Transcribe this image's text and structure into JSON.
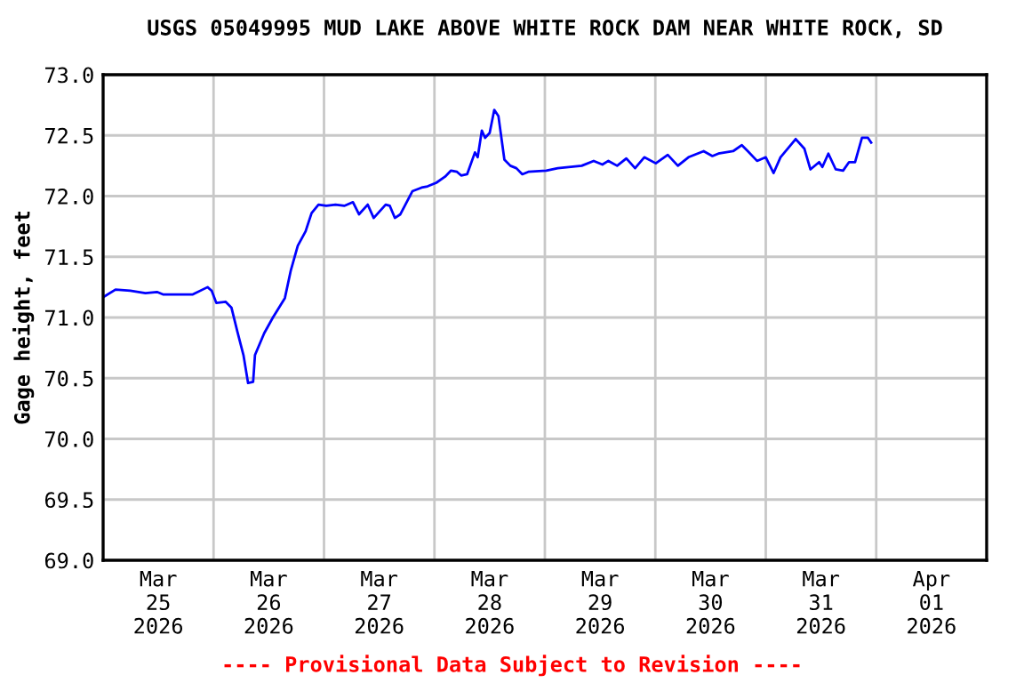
{
  "chart_data": {
    "type": "line",
    "title": "USGS 05049995 MUD LAKE ABOVE WHITE ROCK DAM NEAR WHITE ROCK, SD",
    "ylabel": "Gage height, feet",
    "annotations": [
      "---- Provisional Data Subject to Revision ----"
    ],
    "x": [
      "2026-03-25T00:08",
      "2026-03-25T02:42",
      "2026-03-25T05:54",
      "2026-03-25T09:12",
      "2026-03-25T11:42",
      "2026-03-25T13:00",
      "2026-03-25T19:30",
      "2026-03-25T22:42",
      "2026-03-25T23:36",
      "2026-03-26T00:36",
      "2026-03-26T02:36",
      "2026-03-26T03:54",
      "2026-03-26T05:12",
      "2026-03-26T06:30",
      "2026-03-26T07:30",
      "2026-03-26T08:36",
      "2026-03-26T09:00",
      "2026-03-26T11:00",
      "2026-03-26T12:54",
      "2026-03-26T15:30",
      "2026-03-26T16:48",
      "2026-03-26T18:18",
      "2026-03-26T20:00",
      "2026-03-26T21:18",
      "2026-03-26T22:48",
      "2026-03-27T00:30",
      "2026-03-27T02:30",
      "2026-03-27T04:24",
      "2026-03-27T06:18",
      "2026-03-27T07:36",
      "2026-03-27T09:30",
      "2026-03-27T10:48",
      "2026-03-27T13:24",
      "2026-03-27T14:18",
      "2026-03-27T15:24",
      "2026-03-27T16:36",
      "2026-03-27T19:12",
      "2026-03-27T21:12",
      "2026-03-27T22:30",
      "2026-03-28T00:24",
      "2026-03-28T02:18",
      "2026-03-28T03:36",
      "2026-03-28T04:54",
      "2026-03-28T05:48",
      "2026-03-28T07:06",
      "2026-03-28T08:48",
      "2026-03-28T09:24",
      "2026-03-28T10:18",
      "2026-03-28T11:00",
      "2026-03-28T12:00",
      "2026-03-28T13:00",
      "2026-03-28T13:54",
      "2026-03-28T15:12",
      "2026-03-28T16:30",
      "2026-03-28T17:48",
      "2026-03-28T19:06",
      "2026-03-28T20:24",
      "2026-03-29T00:18",
      "2026-03-29T02:48",
      "2026-03-29T08:00",
      "2026-03-29T10:36",
      "2026-03-29T12:30",
      "2026-03-29T13:48",
      "2026-03-29T15:42",
      "2026-03-29T17:42",
      "2026-03-29T19:36",
      "2026-03-29T21:36",
      "2026-03-30T00:06",
      "2026-03-30T02:42",
      "2026-03-30T04:54",
      "2026-03-30T07:12",
      "2026-03-30T10:30",
      "2026-03-30T12:24",
      "2026-03-30T13:42",
      "2026-03-30T16:54",
      "2026-03-30T18:48",
      "2026-03-30T20:06",
      "2026-03-30T22:06",
      "2026-03-31T00:00",
      "2026-03-31T01:42",
      "2026-03-31T03:12",
      "2026-03-31T06:30",
      "2026-03-31T08:24",
      "2026-03-31T09:42",
      "2026-03-31T11:36",
      "2026-03-31T12:18",
      "2026-03-31T13:36",
      "2026-03-31T15:12",
      "2026-03-31T16:48",
      "2026-03-31T18:06",
      "2026-03-31T19:24",
      "2026-03-31T20:54",
      "2026-03-31T22:12",
      "2026-03-31T22:54"
    ],
    "series": [
      {
        "color": "#0000ff",
        "values": [
          71.17,
          71.23,
          71.22,
          71.2,
          71.21,
          71.19,
          71.19,
          71.25,
          71.22,
          71.12,
          71.13,
          71.08,
          70.88,
          70.69,
          70.46,
          70.47,
          70.69,
          70.87,
          71.0,
          71.16,
          71.39,
          71.59,
          71.71,
          71.86,
          71.93,
          71.92,
          71.93,
          71.92,
          71.95,
          71.85,
          71.93,
          71.82,
          71.93,
          71.92,
          71.82,
          71.85,
          72.04,
          72.07,
          72.08,
          72.11,
          72.16,
          72.21,
          72.2,
          72.17,
          72.18,
          72.36,
          72.32,
          72.54,
          72.48,
          72.52,
          72.71,
          72.66,
          72.3,
          72.25,
          72.23,
          72.18,
          72.2,
          72.21,
          72.23,
          72.25,
          72.29,
          72.26,
          72.29,
          72.25,
          72.31,
          72.23,
          72.32,
          72.27,
          72.34,
          72.25,
          72.32,
          72.37,
          72.33,
          72.35,
          72.37,
          72.42,
          72.37,
          72.29,
          72.32,
          72.19,
          72.32,
          72.47,
          72.39,
          72.22,
          72.28,
          72.24,
          72.35,
          72.22,
          72.21,
          72.28,
          72.28,
          72.48,
          72.48,
          72.44
        ]
      }
    ],
    "xlim": [
      "2026-03-25T00:00",
      "2026-04-02T00:00"
    ],
    "xticks": [
      {
        "value": "2026-03-25T00:00",
        "label": null
      },
      {
        "value": "2026-03-25T12:00",
        "label": "Mar\n25\n2026"
      },
      {
        "value": "2026-03-26T00:00",
        "label": null
      },
      {
        "value": "2026-03-26T12:00",
        "label": "Mar\n26\n2026"
      },
      {
        "value": "2026-03-27T00:00",
        "label": null
      },
      {
        "value": "2026-03-27T12:00",
        "label": "Mar\n27\n2026"
      },
      {
        "value": "2026-03-28T00:00",
        "label": null
      },
      {
        "value": "2026-03-28T12:00",
        "label": "Mar\n28\n2026"
      },
      {
        "value": "2026-03-29T00:00",
        "label": null
      },
      {
        "value": "2026-03-29T12:00",
        "label": "Mar\n29\n2026"
      },
      {
        "value": "2026-03-30T00:00",
        "label": null
      },
      {
        "value": "2026-03-30T12:00",
        "label": "Mar\n30\n2026"
      },
      {
        "value": "2026-03-31T00:00",
        "label": null
      },
      {
        "value": "2026-03-31T12:00",
        "label": "Mar\n31\n2026"
      },
      {
        "value": "2026-04-01T00:00",
        "label": null
      },
      {
        "value": "2026-04-01T12:00",
        "label": "Apr\n01\n2026"
      },
      {
        "value": "2026-04-02T00:00",
        "label": null
      }
    ],
    "ylim": [
      69.0,
      73.0
    ],
    "yticks": [
      {
        "value": 69,
        "label": "69.0"
      },
      {
        "value": 69.5,
        "label": "69.5"
      },
      {
        "value": 70,
        "label": "70.0"
      },
      {
        "value": 70.5,
        "label": "70.5"
      },
      {
        "value": 71,
        "label": "71.0"
      },
      {
        "value": 71.5,
        "label": "71.5"
      },
      {
        "value": 72,
        "label": "72.0"
      },
      {
        "value": 72.5,
        "label": "72.5"
      },
      {
        "value": 73,
        "label": "73.0"
      }
    ],
    "grid": true,
    "marker": "none",
    "line_style": "solid"
  }
}
